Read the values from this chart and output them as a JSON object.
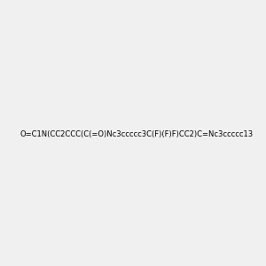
{
  "smiles": "O=C1N(CC2CCC(C(=O)Nc3ccccc3C(F)(F)F)CC2)C=Nc3ccccc13",
  "image_size": 300,
  "background_color": "#f0f0f0",
  "bond_color": "#2d6e2d",
  "atom_colors": {
    "N": "#0000ff",
    "O": "#ff0000",
    "F": "#ff69b4",
    "C": "#2d6e2d"
  }
}
